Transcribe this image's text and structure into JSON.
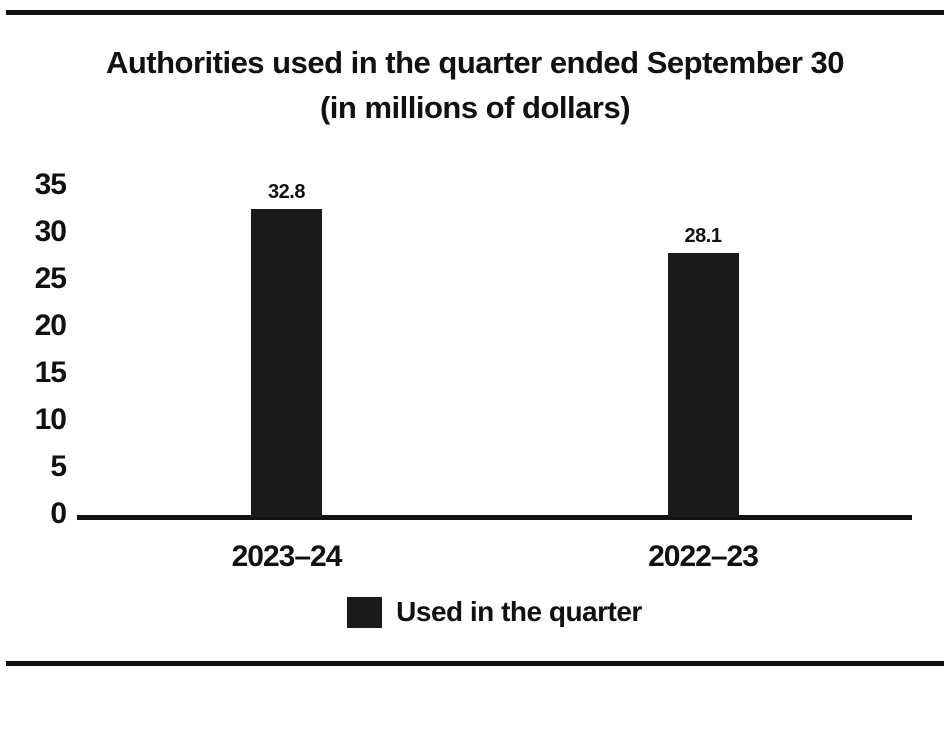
{
  "chart_data": {
    "type": "bar",
    "title": "Authorities used in the quarter ended September 30",
    "subtitle": "(in millions of dollars)",
    "categories": [
      "2023–24",
      "2022–23"
    ],
    "series": [
      {
        "name": "Used in the quarter",
        "values": [
          32.8,
          28.1
        ]
      }
    ],
    "value_labels": [
      "32.8",
      "28.1"
    ],
    "ylim": [
      0,
      35
    ],
    "yticks": [
      0,
      5,
      10,
      15,
      20,
      25,
      30,
      35
    ],
    "grid": false,
    "legend_position": "bottom-center",
    "bar_color": "#1a1a1a",
    "text_color": "#111111"
  }
}
